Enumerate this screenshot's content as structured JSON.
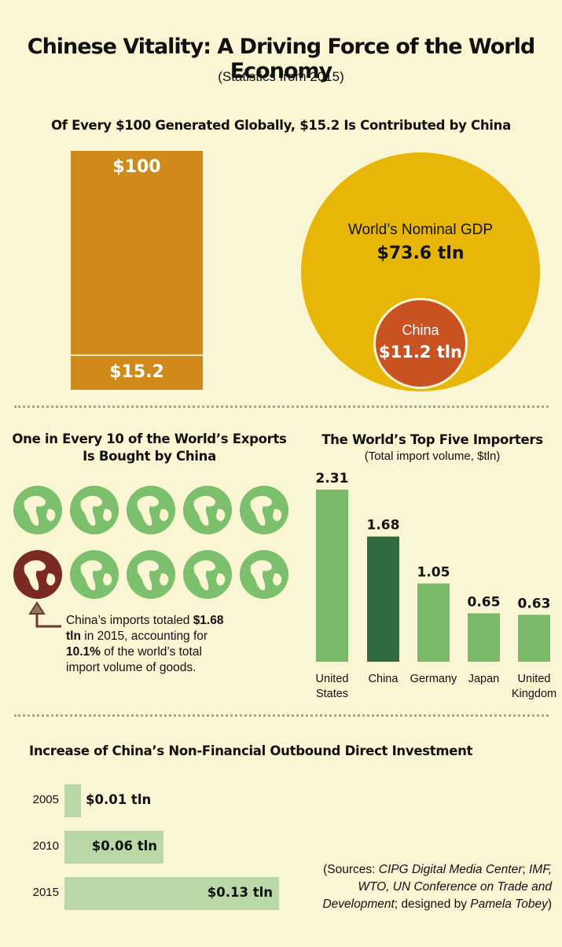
{
  "title": "Chinese Vitality: A Driving Force of the World Economy",
  "subtitle": "(Statistics from 2015)",
  "section1": {
    "heading": "Of Every $100 Generated Globally, $15.2 Is Contributed by China",
    "bar_total_label": "$100",
    "bar_china_label": "$15.2",
    "world_gdp_label": "World’s Nominal GDP",
    "world_gdp_value": "$73.6 tln",
    "china_gdp_label": "China",
    "china_gdp_value": "$11.2 tln"
  },
  "section2": {
    "heading_line1": "One in Every 10 of the World’s Exports",
    "heading_line2": "Is Bought by China",
    "note_part1": "China’s imports totaled ",
    "note_bold1": "$1.68 tln",
    "note_part2": " in 2015, accounting for ",
    "note_bold2": "10.1%",
    "note_part3": " of the world’s total import volume of goods.",
    "globe_icon": "globe-icon",
    "highlight_color": "#7a2a24",
    "globe_color": "#7cbf6c"
  },
  "importers": {
    "heading": "The World’s Top Five Importers",
    "subheading": "(Total import volume, $tln)"
  },
  "investment": {
    "heading": "Increase of China’s Non-Financial Outbound Direct Investment",
    "rows": [
      {
        "year": "2005",
        "label": "$0.01 tln"
      },
      {
        "year": "2010",
        "label": "$0.06 tln"
      },
      {
        "year": "2015",
        "label": "$0.13 tln"
      }
    ]
  },
  "sources": {
    "p1": "(Sources: ",
    "i1": "CIPG Digital Media Center",
    "p2": "; ",
    "i2": "IMF, WTO, UN Conference on Trade and Development",
    "p3": "; designed by ",
    "i3": "Pamela Tobey",
    "p4": ")"
  },
  "chart_data": [
    {
      "type": "bar",
      "categories": [
        "United States",
        "China",
        "Germany",
        "Japan",
        "United Kingdom"
      ],
      "values": [
        2.31,
        1.68,
        1.05,
        0.65,
        0.63
      ],
      "ylim": [
        0,
        2.31
      ],
      "colors": [
        "#78b96a",
        "#2f6b3f",
        "#78b96a",
        "#78b96a",
        "#78b96a"
      ]
    },
    {
      "type": "bar",
      "orientation": "horizontal",
      "categories": [
        "2005",
        "2010",
        "2015"
      ],
      "values": [
        0.01,
        0.06,
        0.13
      ],
      "labels": [
        "$0.01 tln",
        "$0.06 tln",
        "$0.13 tln"
      ]
    }
  ]
}
